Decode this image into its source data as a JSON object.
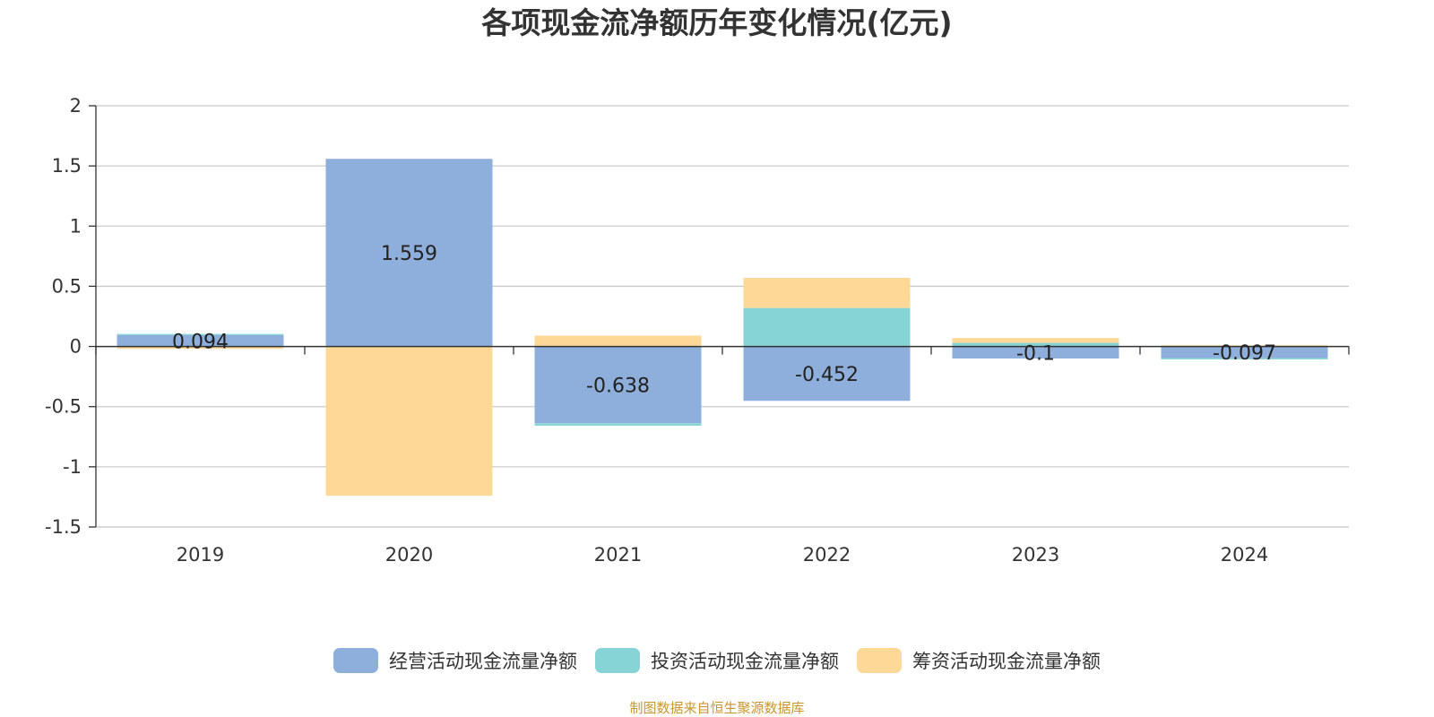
{
  "chart_data": {
    "type": "bar",
    "stacked": true,
    "title": "各项现金流净额历年变化情况(亿元)",
    "categories": [
      "2019",
      "2020",
      "2021",
      "2022",
      "2023",
      "2024"
    ],
    "ylim": [
      -1.5,
      2
    ],
    "yticks": [
      2,
      1.5,
      1,
      0.5,
      0,
      -0.5,
      -1,
      -1.5
    ],
    "ytick_labels": [
      "2",
      "1.5",
      "1",
      "0.5",
      "0",
      "-0.5",
      "-1",
      "-1.5"
    ],
    "grid": true,
    "legend_position": "bottom",
    "series": [
      {
        "name": "经营活动现金流量净额",
        "color": "#8eaedb",
        "values": [
          0.094,
          1.559,
          -0.638,
          -0.452,
          -0.1,
          -0.097
        ],
        "labels": [
          "0.094",
          "1.559",
          "-0.638",
          "-0.452",
          "-0.1",
          "-0.097"
        ]
      },
      {
        "name": "投资活动现金流量净额",
        "color": "#86d4d6",
        "values": [
          0.01,
          0.0,
          -0.02,
          0.32,
          0.03,
          -0.01
        ],
        "labels": []
      },
      {
        "name": "筹资活动现金流量净额",
        "color": "#fed897",
        "values": [
          -0.02,
          -1.24,
          0.09,
          0.25,
          0.04,
          0.01
        ],
        "labels": []
      }
    ]
  },
  "source_note": "制图数据来自恒生聚源数据库"
}
